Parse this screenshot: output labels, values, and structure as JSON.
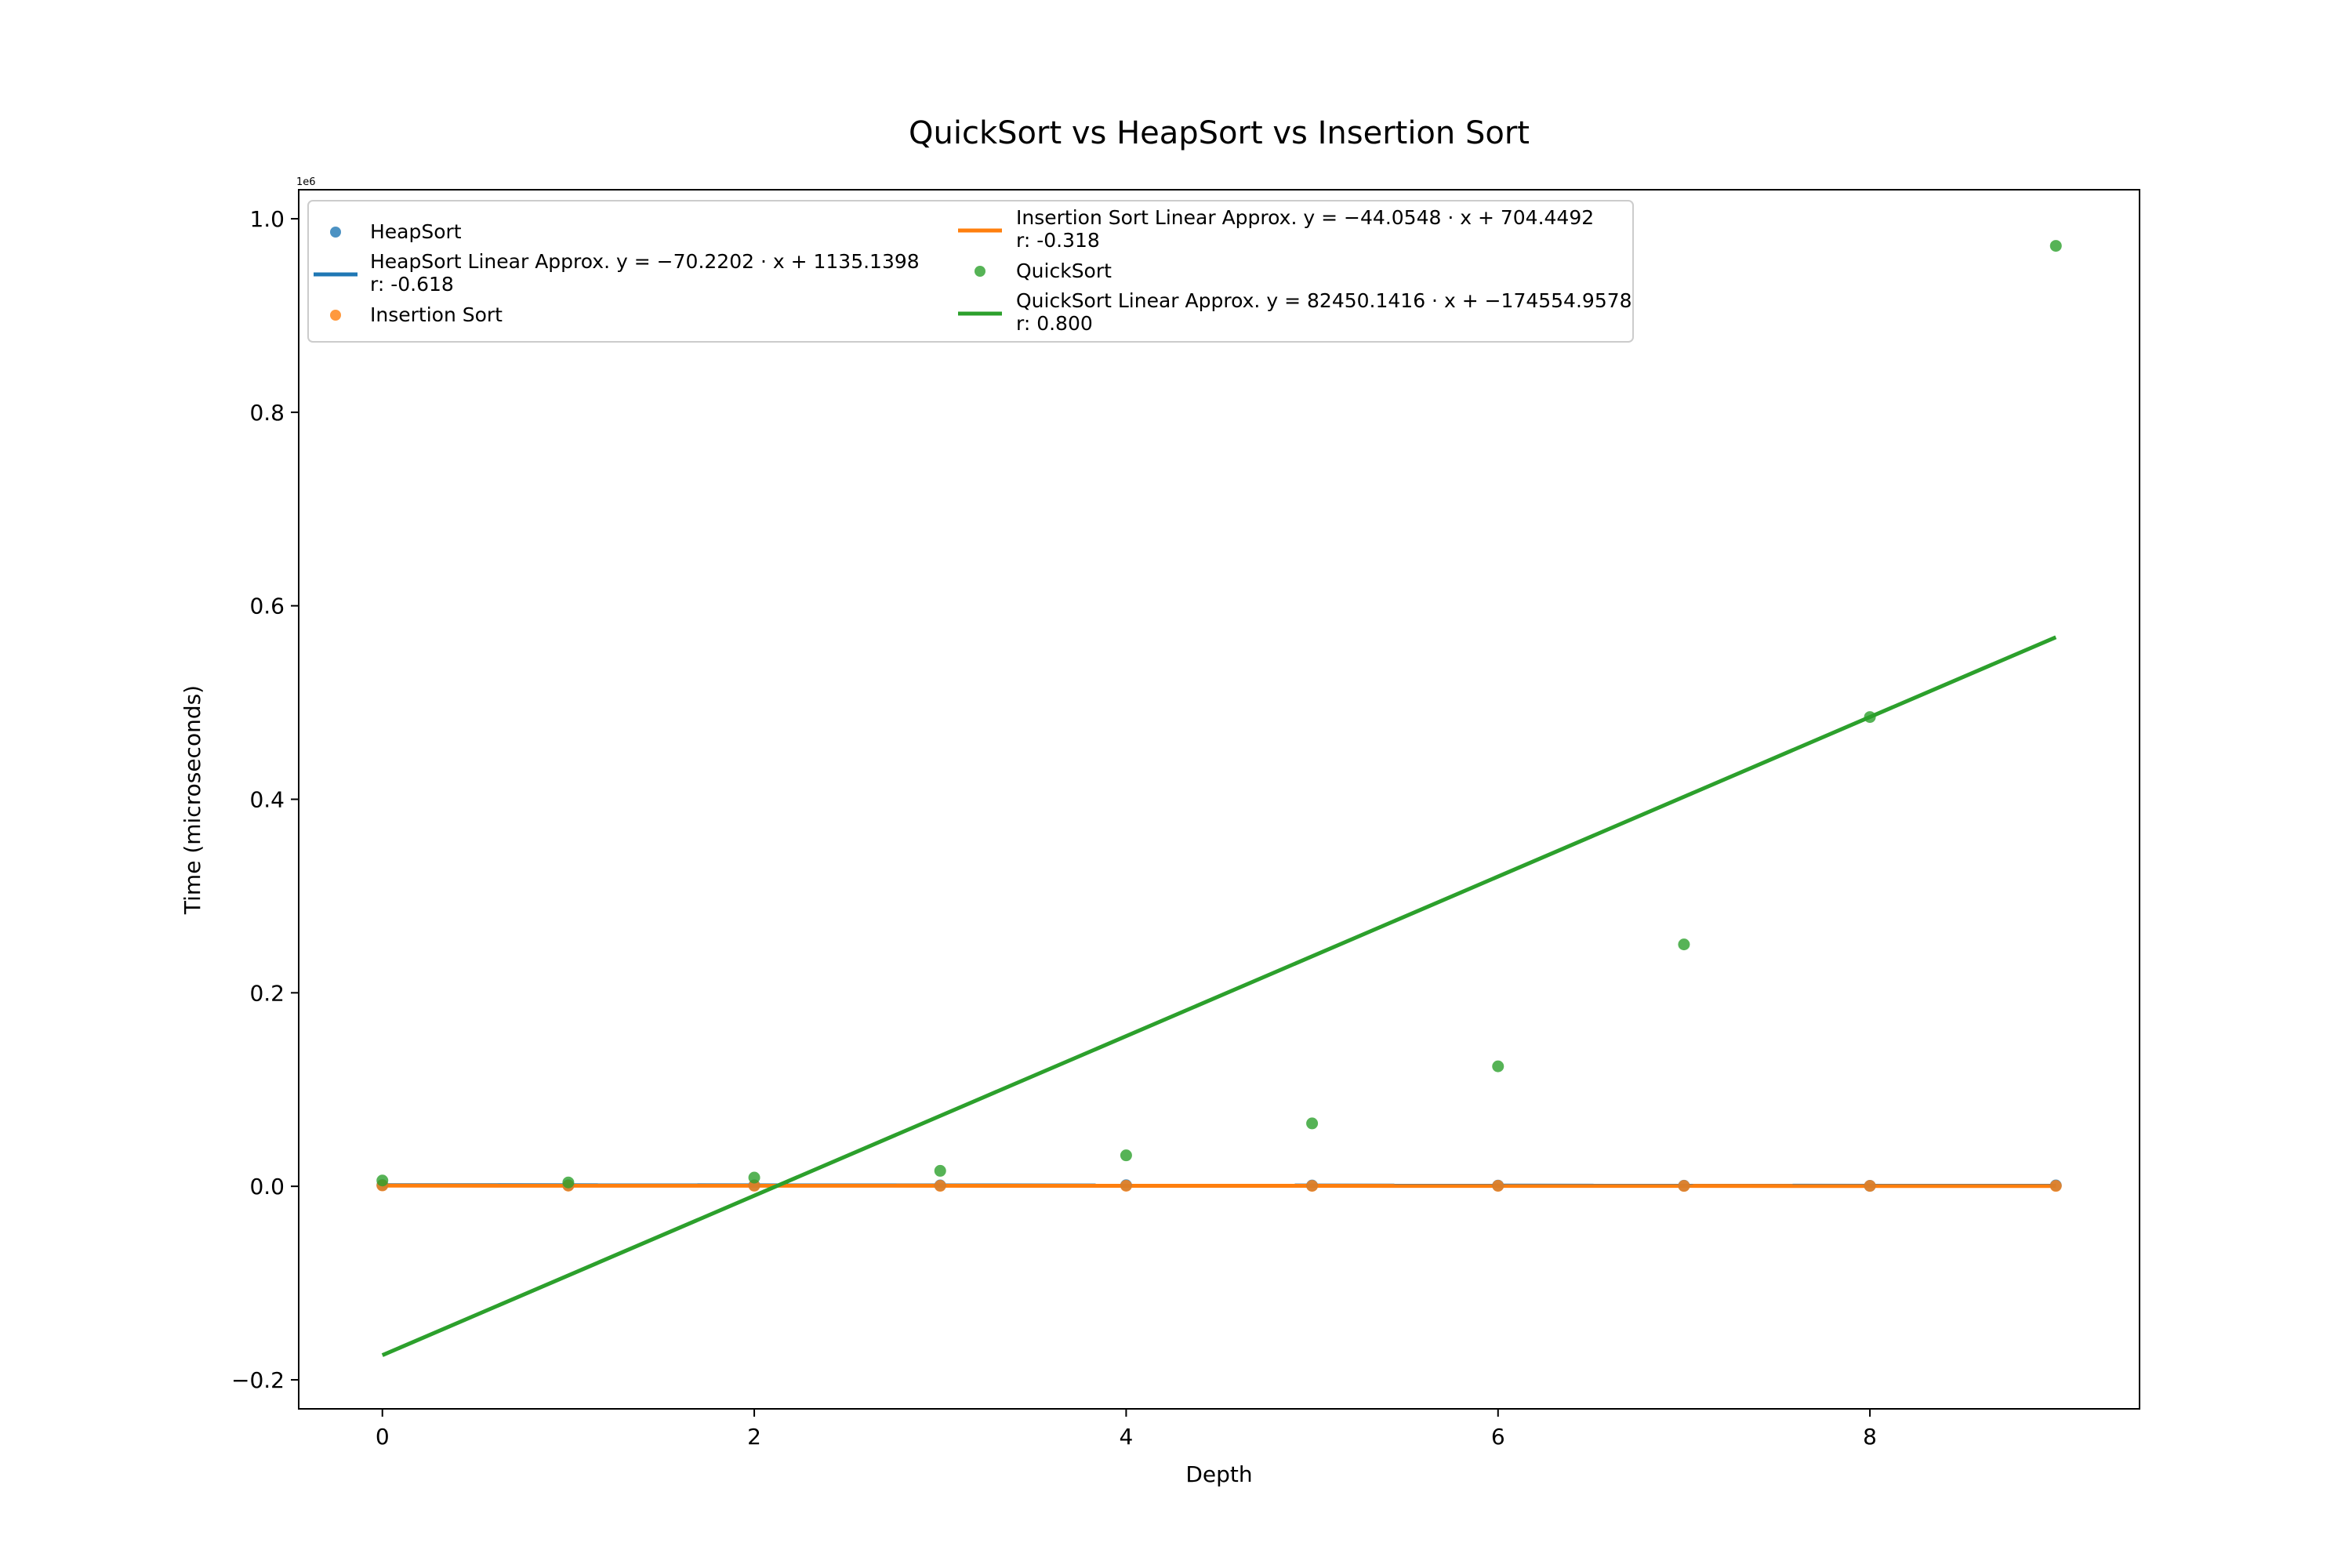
{
  "chart_data": {
    "type": "scatter",
    "title": "QuickSort vs HeapSort vs Insertion Sort",
    "xlabel": "Depth",
    "ylabel": "Time (microseconds)",
    "y_scale_label": "1e6",
    "xlim": [
      -0.45,
      9.45
    ],
    "ylim": [
      -0.23,
      1.03
    ],
    "y_scale_factor": 1000000,
    "x_ticks": [
      0,
      2,
      4,
      6,
      8
    ],
    "x_tick_labels": [
      "0",
      "2",
      "4",
      "6",
      "8"
    ],
    "y_ticks": [
      -0.2,
      0.0,
      0.2,
      0.4,
      0.6,
      0.8,
      1.0
    ],
    "y_tick_labels": [
      "−0.2",
      "0.0",
      "0.2",
      "0.4",
      "0.6",
      "0.8",
      "1.0"
    ],
    "grid": false,
    "legend_position": "top-left",
    "x": [
      0,
      1,
      2,
      3,
      4,
      5,
      6,
      7,
      8,
      9
    ],
    "series": [
      {
        "name": "HeapSort",
        "kind": "scatter",
        "color": "#1f77b4",
        "y": [
          1200,
          1050,
          1000,
          900,
          1100,
          800,
          750,
          600,
          500,
          900
        ]
      },
      {
        "name": "HeapSort Linear Approx.",
        "kind": "line",
        "color": "#1f77b4",
        "equation": "y = −70.2202 · x + 1135.1398",
        "r_label": "r: -0.618",
        "slope": -70.2202,
        "intercept": 1135.1398
      },
      {
        "name": "Insertion Sort",
        "kind": "scatter",
        "color": "#ff7f0e",
        "y": [
          900,
          650,
          600,
          500,
          550,
          450,
          500,
          400,
          450,
          400
        ]
      },
      {
        "name": "Insertion Sort Linear Approx.",
        "kind": "line",
        "color": "#ff7f0e",
        "equation": "y = −44.0548 · x + 704.4492",
        "r_label": "r: -0.318",
        "slope": -44.0548,
        "intercept": 704.4492
      },
      {
        "name": "QuickSort",
        "kind": "scatter",
        "color": "#2ca02c",
        "y": [
          6000,
          4000,
          9000,
          16000,
          32000,
          65000,
          124000,
          250000,
          485000,
          972000
        ]
      },
      {
        "name": "QuickSort Linear Approx.",
        "kind": "line",
        "color": "#2ca02c",
        "equation": "y = 82450.1416 · x + −174554.9578",
        "r_label": "r: 0.800",
        "slope": 82450.1416,
        "intercept": -174554.9578
      }
    ]
  }
}
